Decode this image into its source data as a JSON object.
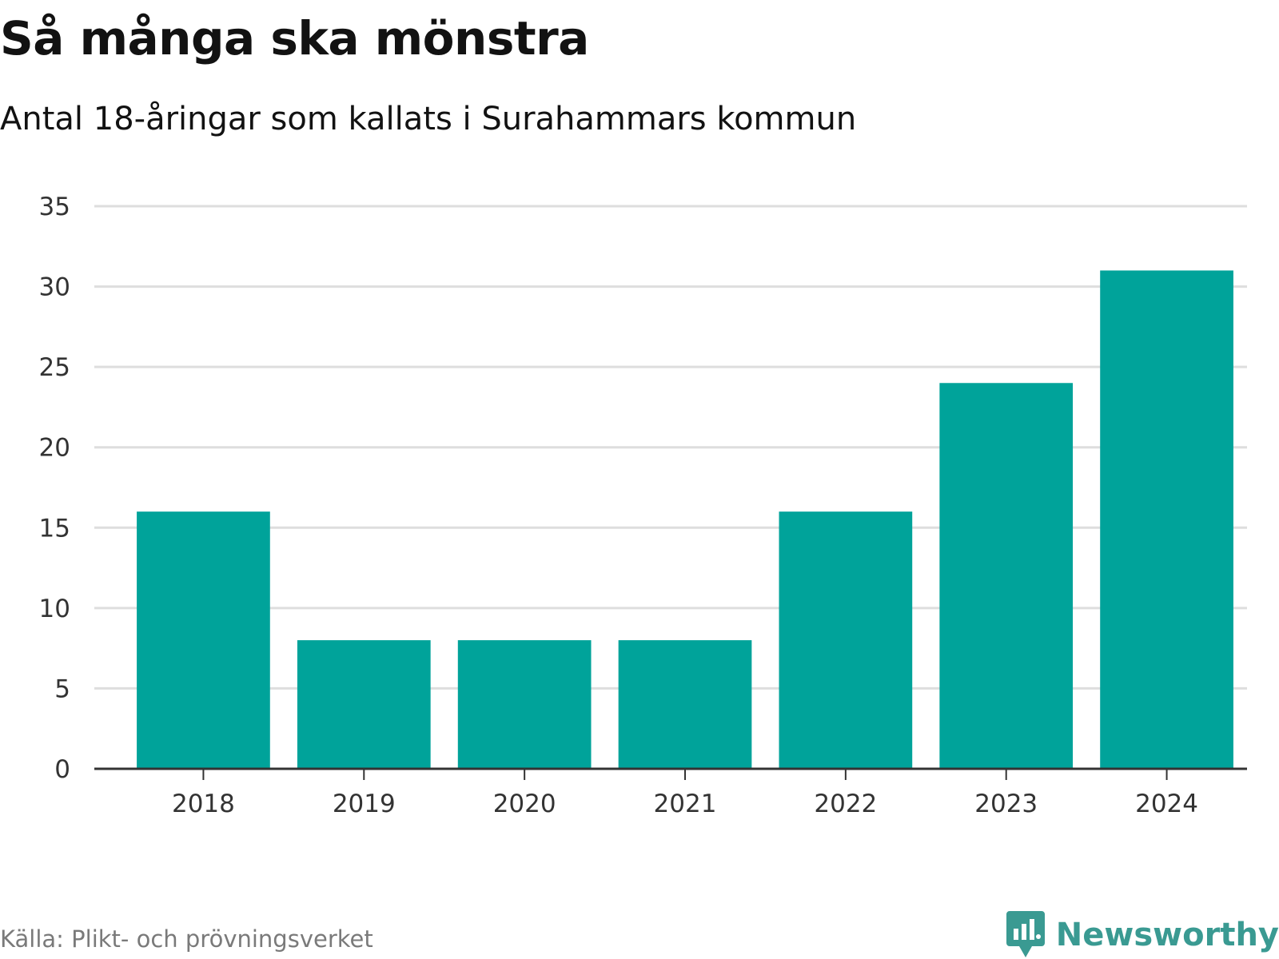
{
  "header": {
    "title": "Så många ska mönstra",
    "subtitle": "Antal 18-åringar som kallats i Surahammars kommun"
  },
  "footer": {
    "source": "Källa: Plikt- och prövningsverket",
    "brand": "Newsworthy",
    "brand_icon": "bar-chart-speech-bubble-icon"
  },
  "colors": {
    "bar": "#00a39a",
    "grid": "#dedede",
    "axis": "#333333",
    "brand": "#3a9a92"
  },
  "chart_data": {
    "type": "bar",
    "title": "Så många ska mönstra",
    "subtitle": "Antal 18-åringar som kallats i Surahammars kommun",
    "xlabel": "",
    "ylabel": "",
    "categories": [
      "2018",
      "2019",
      "2020",
      "2021",
      "2022",
      "2023",
      "2024"
    ],
    "values": [
      16,
      8,
      8,
      8,
      16,
      24,
      31
    ],
    "ylim": [
      0,
      35
    ],
    "yticks": [
      0,
      5,
      10,
      15,
      20,
      25,
      30,
      35
    ],
    "grid": true,
    "legend": "none"
  }
}
